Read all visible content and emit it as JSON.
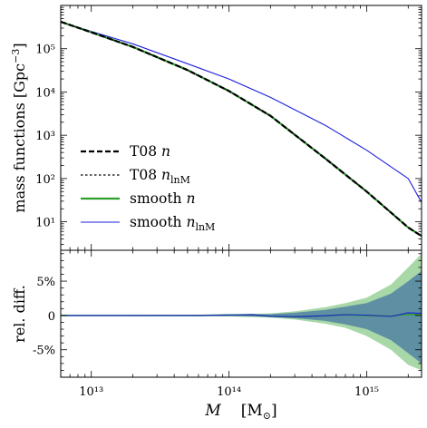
{
  "chart_data": [
    {
      "type": "line",
      "panel": "top",
      "yscale": "log",
      "xscale": "log",
      "ylabel": "mass functions [Gpc⁻³]",
      "ylim": [
        2.2,
        1000000
      ],
      "xlim": [
        6000000000000.0,
        2500000000000000.0
      ],
      "yticks": [
        {
          "value": 10,
          "label": "10¹"
        },
        {
          "value": 100,
          "label": "10²"
        },
        {
          "value": 1000,
          "label": "10³"
        },
        {
          "value": 10000,
          "label": "10⁴"
        },
        {
          "value": 100000,
          "label": "10⁵"
        }
      ],
      "legend_position": "lower-left",
      "grid": false,
      "series": [
        {
          "name": "T08 n",
          "style": "dashed",
          "width": 2.2,
          "color": "#000000",
          "x": [
            6000000000000.0,
            10000000000000.0,
            20000000000000.0,
            50000000000000.0,
            100000000000000.0,
            200000000000000.0,
            500000000000000.0,
            1000000000000000.0,
            2000000000000000.0,
            2500000000000000.0
          ],
          "y": [
            420000,
            240000,
            110000,
            32000,
            10500,
            2800,
            290,
            50,
            7.4,
            4.7
          ]
        },
        {
          "name": "T08 n_lnM",
          "style": "dotted",
          "width": 1.2,
          "color": "#000000",
          "x": [
            6000000000000.0,
            10000000000000.0,
            20000000000000.0,
            50000000000000.0,
            100000000000000.0,
            200000000000000.0,
            500000000000000.0,
            1000000000000000.0,
            2000000000000000.0,
            2500000000000000.0
          ],
          "y": [
            420000,
            240000,
            110000,
            32000,
            10500,
            2800,
            290,
            50,
            7.4,
            4.7
          ]
        },
        {
          "name": "smooth n",
          "style": "solid",
          "width": 2.2,
          "color": "#2ca02c",
          "x": [
            6000000000000.0,
            10000000000000.0,
            20000000000000.0,
            50000000000000.0,
            100000000000000.0,
            200000000000000.0,
            500000000000000.0,
            1000000000000000.0,
            2000000000000000.0,
            2500000000000000.0
          ],
          "y": [
            420000,
            240000,
            110000,
            32000,
            10500,
            2800,
            290,
            50,
            7.4,
            4.7
          ]
        },
        {
          "name": "smooth n_lnM",
          "style": "solid",
          "width": 1.1,
          "color": "#1f1fdd",
          "x": [
            6000000000000.0,
            10000000000000.0,
            20000000000000.0,
            50000000000000.0,
            100000000000000.0,
            200000000000000.0,
            500000000000000.0,
            1000000000000000.0,
            2000000000000000.0,
            2500000000000000.0
          ],
          "y": [
            420000,
            250000,
            130000,
            45000,
            20000,
            7500,
            1700,
            450,
            100,
            28
          ]
        }
      ]
    },
    {
      "type": "area",
      "panel": "bottom",
      "xscale": "log",
      "xlabel": "M    [M☉]",
      "ylabel": "rel. diff.",
      "ylim": [
        -0.09,
        0.095
      ],
      "xlim": [
        6000000000000.0,
        2500000000000000.0
      ],
      "xticks": [
        {
          "value": 10000000000000.0,
          "label": "10¹³"
        },
        {
          "value": 100000000000000.0,
          "label": "10¹⁴"
        },
        {
          "value": 1000000000000000.0,
          "label": "10¹⁵"
        }
      ],
      "yticks": [
        {
          "value": 0.05,
          "label": "5%"
        },
        {
          "value": 0,
          "label": "0"
        },
        {
          "value": -0.05,
          "label": "-5%"
        }
      ],
      "bands": [
        {
          "color": "#a8d8a8",
          "x": [
            6000000000000.0,
            10000000000000.0,
            50000000000000.0,
            100000000000000.0,
            200000000000000.0,
            300000000000000.0,
            500000000000000.0,
            700000000000000.0,
            1000000000000000.0,
            1500000000000000.0,
            2000000000000000.0,
            2500000000000000.0
          ],
          "upper": [
            0.0008,
            0.0008,
            0.001,
            0.0015,
            0.003,
            0.006,
            0.012,
            0.018,
            0.026,
            0.045,
            0.07,
            0.09
          ],
          "lower": [
            -0.0008,
            -0.0008,
            -0.001,
            -0.0015,
            -0.003,
            -0.006,
            -0.012,
            -0.018,
            -0.03,
            -0.05,
            -0.072,
            -0.08
          ]
        },
        {
          "color": "#5f8fa3",
          "x": [
            6000000000000.0,
            10000000000000.0,
            50000000000000.0,
            100000000000000.0,
            200000000000000.0,
            300000000000000.0,
            500000000000000.0,
            700000000000000.0,
            1000000000000000.0,
            1500000000000000.0,
            2000000000000000.0,
            2500000000000000.0
          ],
          "upper": [
            0.0004,
            0.0004,
            0.0006,
            0.001,
            0.002,
            0.004,
            0.008,
            0.013,
            0.018,
            0.032,
            0.05,
            0.065
          ],
          "lower": [
            -0.0004,
            -0.0004,
            -0.0006,
            -0.001,
            -0.002,
            -0.004,
            -0.008,
            -0.013,
            -0.02,
            -0.036,
            -0.055,
            -0.07
          ]
        }
      ],
      "series": [
        {
          "name": "smooth n",
          "style": "solid",
          "width": 1.6,
          "color": "#2ca02c",
          "x": [
            6000000000000.0,
            10000000000000.0,
            30000000000000.0,
            60000000000000.0,
            100000000000000.0,
            150000000000000.0,
            200000000000000.0,
            300000000000000.0,
            500000000000000.0,
            700000000000000.0,
            1000000000000000.0,
            1500000000000000.0,
            2000000000000000.0,
            2500000000000000.0
          ],
          "y": [
            0,
            0,
            0,
            0,
            0.0008,
            0.0012,
            -0.0015,
            -0.002,
            -0.0005,
            0.001,
            0,
            -0.001,
            0.002,
            0.001
          ]
        },
        {
          "name": "smooth n_lnM",
          "style": "solid",
          "width": 1.1,
          "color": "#1f1fdd",
          "x": [
            6000000000000.0,
            10000000000000.0,
            30000000000000.0,
            60000000000000.0,
            100000000000000.0,
            150000000000000.0,
            200000000000000.0,
            300000000000000.0,
            500000000000000.0,
            700000000000000.0,
            1000000000000000.0,
            1500000000000000.0,
            2000000000000000.0,
            2500000000000000.0
          ],
          "y": [
            0,
            0,
            0,
            0,
            0.0006,
            0.001,
            -0.0012,
            -0.0018,
            -0.0004,
            0.0012,
            0.0005,
            -0.0015,
            0.004,
            0.003
          ]
        }
      ]
    }
  ],
  "legend": [
    {
      "label_main": "T08 ",
      "label_var": "n",
      "label_sub": ""
    },
    {
      "label_main": "T08 ",
      "label_var": "n",
      "label_sub": "lnM"
    },
    {
      "label_main": "smooth ",
      "label_var": "n",
      "label_sub": ""
    },
    {
      "label_main": "smooth ",
      "label_var": "n",
      "label_sub": "lnM"
    }
  ],
  "labels": {
    "top_ylabel": "mass functions [Gpc",
    "top_ylabel_sup": "−3",
    "top_ylabel_end": "]",
    "bottom_ylabel": "rel. diff.",
    "xlabel_var": "M",
    "xlabel_unit_open": "[M",
    "xlabel_unit_sub": "⊙",
    "xlabel_unit_close": "]"
  }
}
